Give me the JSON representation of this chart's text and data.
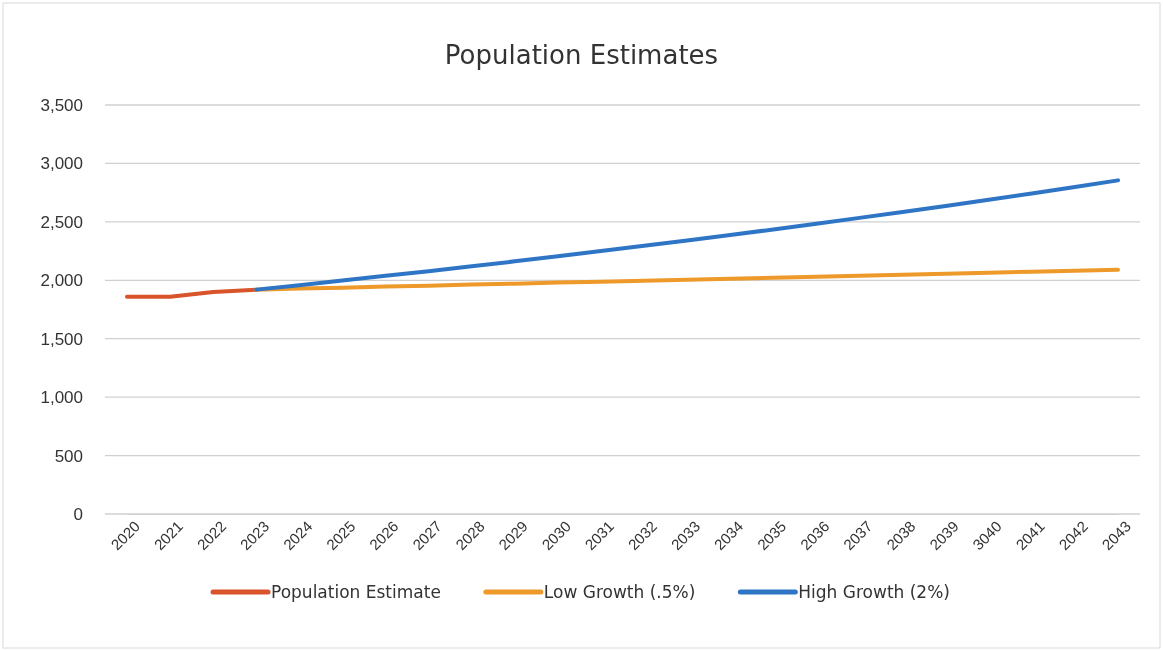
{
  "chart_data": {
    "type": "line",
    "title": "Population Estimates",
    "categories": [
      "2020",
      "2021",
      "2022",
      "2023",
      "2024",
      "2025",
      "2026",
      "2027",
      "2028",
      "2029",
      "2030",
      "2031",
      "2032",
      "2033",
      "2034",
      "2035",
      "2036",
      "2037",
      "2038",
      "2039",
      "3040",
      "2041",
      "2042",
      "2043"
    ],
    "series": [
      {
        "name": "Population Estimate",
        "color": "#d9532b",
        "values": [
          1860,
          1860,
          1900,
          1920,
          null,
          null,
          null,
          null,
          null,
          null,
          null,
          null,
          null,
          null,
          null,
          null,
          null,
          null,
          null,
          null,
          null,
          null,
          null,
          null
        ]
      },
      {
        "name": "Low Growth (.5%)",
        "color": "#ed9a2b",
        "values": [
          null,
          null,
          null,
          1920,
          1929,
          1937,
          1946,
          1954,
          1963,
          1971,
          1980,
          1988,
          1997,
          2005,
          2014,
          2022,
          2031,
          2039,
          2048,
          2056,
          2065,
          2073,
          2082,
          2090
        ]
      },
      {
        "name": "High Growth (2%)",
        "color": "#2e75c6",
        "values": [
          null,
          null,
          null,
          1920,
          1958,
          1998,
          2038,
          2078,
          2120,
          2162,
          2206,
          2250,
          2295,
          2341,
          2388,
          2435,
          2484,
          2534,
          2585,
          2636,
          2689,
          2743,
          2798,
          2855
        ]
      }
    ],
    "ylim": [
      0,
      3500
    ],
    "yticks": [
      0,
      {
        "value": 500,
        "label": "500"
      },
      {
        "value": 1000,
        "label": "1,000"
      },
      {
        "value": 1500,
        "label": "1,500"
      },
      {
        "value": 2000,
        "label": "2,000"
      },
      {
        "value": 2500,
        "label": "2,500"
      },
      {
        "value": 3000,
        "label": "3,000"
      },
      {
        "value": 3500,
        "label": "3,500"
      }
    ],
    "grid": "y",
    "legend": "bottom",
    "marker": "none",
    "line_style": "solid"
  }
}
